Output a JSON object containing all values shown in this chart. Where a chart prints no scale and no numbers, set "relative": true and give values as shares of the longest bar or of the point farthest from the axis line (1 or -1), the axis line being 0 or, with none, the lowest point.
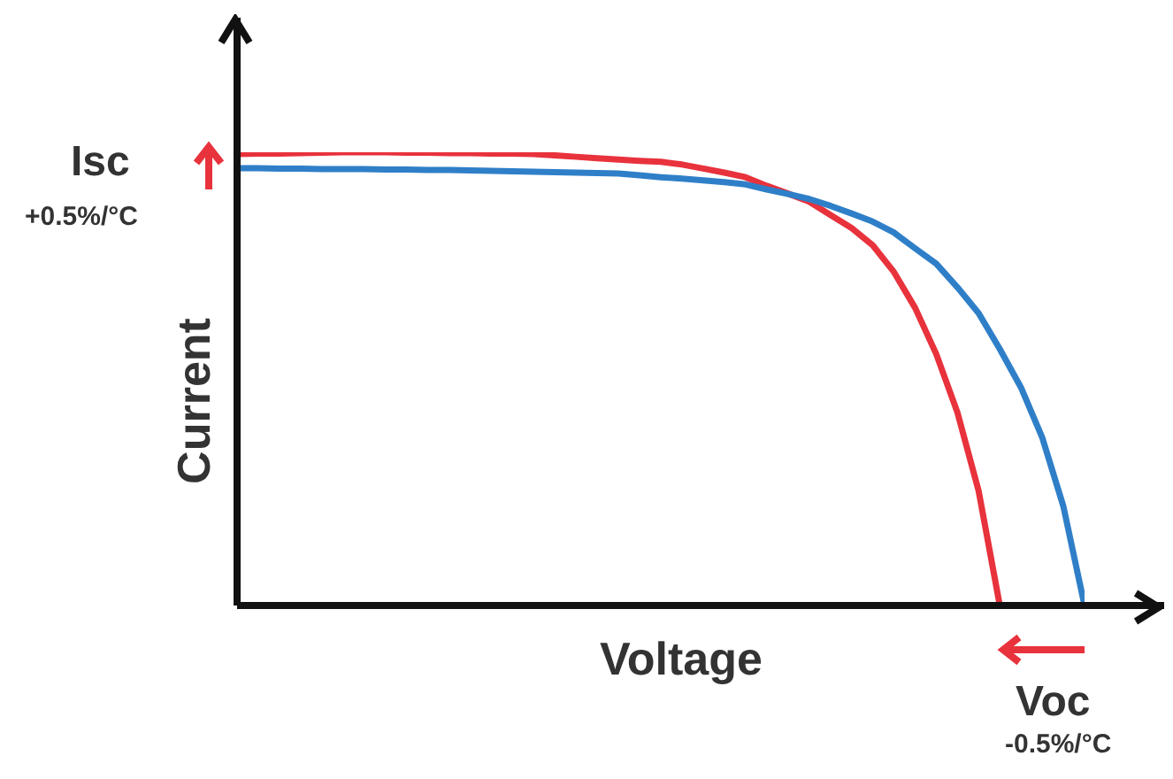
{
  "chart_data": {
    "type": "line",
    "relative": true,
    "xlabel": "Voltage",
    "ylabel": "Current",
    "annotations": [
      "Isc",
      "+0.5%/°C",
      "Voc",
      "-0.5%/°C"
    ],
    "legend": false,
    "marker": "none",
    "line_style": "solid",
    "categories": [
      null,
      null,
      null,
      null,
      null,
      null,
      null,
      null,
      null,
      null,
      null,
      null,
      null,
      null,
      null,
      null,
      null,
      null,
      null,
      null,
      null,
      null,
      null,
      null,
      null,
      null,
      null,
      null,
      null,
      null,
      null,
      null,
      null,
      null,
      null,
      null,
      null,
      null,
      null,
      null,
      null
    ],
    "series": [
      {
        "color": "#e8323c",
        "values": [
          0.996,
          0.997,
          0.997,
          0.998,
          0.999,
          1,
          1,
          1,
          0.999,
          0.999,
          0.998,
          0.998,
          0.997,
          0.997,
          0.996,
          0.993,
          0.99,
          0.987,
          0.984,
          0.981,
          0.979,
          0.973,
          0.964,
          0.955,
          0.945,
          0.926,
          0.909,
          0.891,
          0.862,
          0.833,
          0.795,
          0.736,
          0.657,
          0.555,
          0.426,
          0.253,
          0,
          null,
          null,
          null,
          null
        ]
      },
      {
        "color": "#2f7fc8",
        "values": [
          0.965,
          0.965,
          0.964,
          0.964,
          0.963,
          0.963,
          0.963,
          0.962,
          0.962,
          0.961,
          0.961,
          0.96,
          0.959,
          0.958,
          0.957,
          0.956,
          0.955,
          0.954,
          0.953,
          0.949,
          0.945,
          0.942,
          0.938,
          0.934,
          0.929,
          0.918,
          0.908,
          0.897,
          0.882,
          0.865,
          0.847,
          0.823,
          0.788,
          0.754,
          0.702,
          0.645,
          0.566,
          0.481,
          0.371,
          0.219,
          0
        ]
      }
    ]
  }
}
